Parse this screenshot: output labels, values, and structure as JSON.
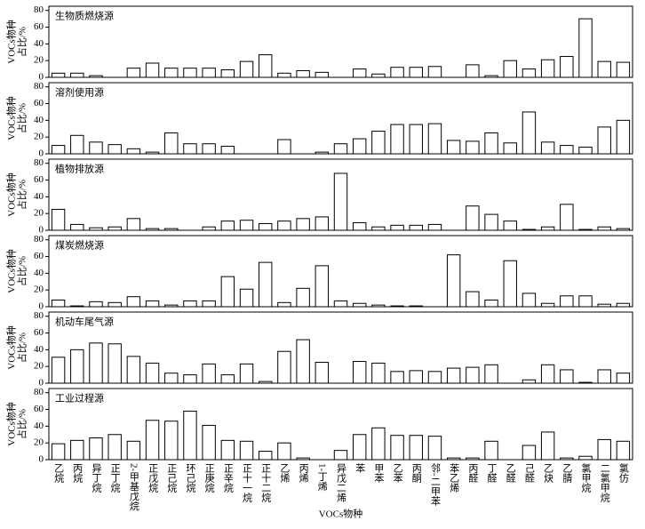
{
  "chart_data": [
    {
      "type": "bar",
      "title": "生物质燃烧源",
      "y_label": [
        "VOCs物种",
        "占比/%"
      ],
      "ylim": [
        0,
        85
      ],
      "yticks": [
        0,
        20,
        40,
        60,
        80
      ],
      "color": "#ffffff",
      "values": [
        5,
        5,
        2,
        0,
        11,
        17,
        11,
        11,
        11,
        9,
        19,
        27,
        5,
        8,
        6,
        0,
        10,
        4,
        12,
        12,
        13,
        0,
        15,
        2,
        20,
        10,
        21,
        25,
        70,
        19,
        18
      ]
    },
    {
      "type": "bar",
      "title": "溶剂使用源",
      "y_label": [
        "VOCs物种",
        "占比/%"
      ],
      "ylim": [
        0,
        85
      ],
      "yticks": [
        0,
        20,
        40,
        60,
        80
      ],
      "color": "#ffffff",
      "values": [
        10,
        22,
        14,
        11,
        6,
        2,
        25,
        12,
        12,
        9,
        0,
        0,
        17,
        0,
        2,
        12,
        18,
        27,
        35,
        35,
        36,
        16,
        15,
        25,
        13,
        50,
        14,
        10,
        8,
        32,
        40
      ]
    },
    {
      "type": "bar",
      "title": "植物排放源",
      "y_label": [
        "VOCs物种",
        "占比/%"
      ],
      "ylim": [
        0,
        85
      ],
      "yticks": [
        0,
        20,
        40,
        60,
        80
      ],
      "color": "#ffffff",
      "values": [
        25,
        7,
        3,
        4,
        14,
        2,
        2,
        0,
        4,
        11,
        12,
        8,
        11,
        14,
        16,
        68,
        9,
        4,
        6,
        6,
        7,
        0,
        29,
        19,
        11,
        1,
        4,
        31,
        1,
        4,
        2
      ]
    },
    {
      "type": "bar",
      "title": "煤炭燃烧源",
      "y_label": [
        "VOCs物种",
        "占比/%"
      ],
      "ylim": [
        0,
        85
      ],
      "yticks": [
        0,
        20,
        40,
        60,
        80
      ],
      "color": "#ffffff",
      "values": [
        8,
        1,
        6,
        5,
        12,
        7,
        2,
        7,
        7,
        36,
        21,
        53,
        5,
        22,
        49,
        7,
        4,
        2,
        1,
        1,
        0,
        62,
        18,
        8,
        55,
        16,
        4,
        13,
        13,
        3,
        4
      ]
    },
    {
      "type": "bar",
      "title": "机动车尾气源",
      "y_label": [
        "VOCs物种",
        "占比/%"
      ],
      "ylim": [
        0,
        85
      ],
      "yticks": [
        0,
        20,
        40,
        60,
        80
      ],
      "color": "#ffffff",
      "values": [
        31,
        40,
        48,
        47,
        32,
        24,
        12,
        10,
        23,
        10,
        23,
        2,
        38,
        52,
        25,
        0,
        26,
        24,
        14,
        15,
        14,
        18,
        19,
        22,
        0,
        4,
        22,
        16,
        1,
        16,
        12
      ]
    },
    {
      "type": "bar",
      "title": "工业过程源",
      "y_label": [
        "VOCs物种",
        "占比/%"
      ],
      "ylim": [
        0,
        85
      ],
      "yticks": [
        0,
        20,
        40,
        60,
        80
      ],
      "color": "#ffffff",
      "x_label": "VOCs物种",
      "categories": [
        "乙烷",
        "丙烷",
        "异丁烷",
        "正丁烷",
        "2-甲基戊烷",
        "正戊烷",
        "正己烷",
        "环己烷",
        "正庚烷",
        "正辛烷",
        "正十一烷",
        "正十二烷",
        "乙烯",
        "丙烯",
        "1-丁烯",
        "异戊二烯",
        "苯",
        "甲苯",
        "乙苯",
        "丙酮",
        "邻-二甲苯",
        "苯乙烯",
        "丙醛",
        "丁醛",
        "乙醛",
        "己醛",
        "乙炔",
        "乙腈",
        "氯甲烷",
        "二氯甲烷",
        "氯仿"
      ],
      "values": [
        19,
        23,
        26,
        30,
        22,
        47,
        46,
        58,
        41,
        23,
        22,
        10,
        20,
        2,
        0,
        11,
        30,
        38,
        29,
        29,
        28,
        2,
        2,
        22,
        0,
        17,
        33,
        2,
        4,
        24,
        22
      ]
    }
  ]
}
